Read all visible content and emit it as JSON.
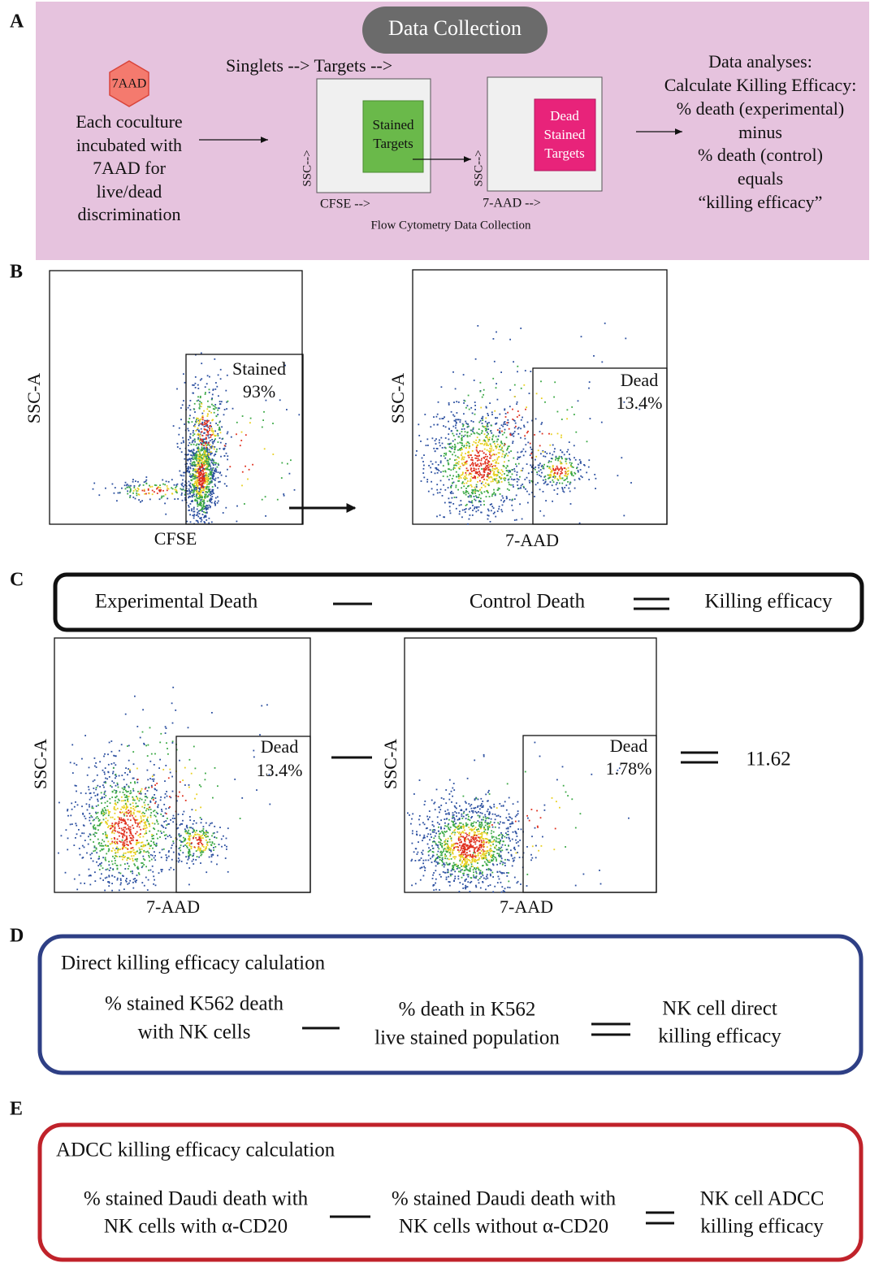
{
  "panels": {
    "A": {
      "label": "A",
      "badge": "Data Collection",
      "reagent": "7AAD",
      "incubation": [
        "Each coculture",
        "incubated with",
        "7AAD for",
        "live/dead",
        "discrimination"
      ],
      "gating_path": "Singlets --> Targets -->",
      "box1": {
        "gate": [
          "Stained",
          "Targets"
        ],
        "y_axis": "SSC-->",
        "x_axis": "CFSE -->"
      },
      "box2": {
        "gate": [
          "Dead",
          "Stained",
          "Targets"
        ],
        "y_axis": "SSC-->",
        "x_axis": "7-AAD -->"
      },
      "caption": "Flow Cytometry Data Collection",
      "analysis": [
        "Data analyses:",
        "Calculate Killing Efficacy:",
        "% death (experimental)",
        "minus",
        "% death (control)",
        "equals",
        "“killing efficacy”"
      ]
    },
    "B": {
      "label": "B",
      "plot1": {
        "y_axis": "SSC-A",
        "x_axis": "CFSE",
        "gate": "Stained",
        "percent": "93%"
      },
      "plot2": {
        "y_axis": "SSC-A",
        "x_axis": "7-AAD",
        "gate": "Dead",
        "percent": "13.4%"
      }
    },
    "C": {
      "label": "C",
      "equation": [
        "Experimental Death",
        "Control Death",
        "Killing efficacy"
      ],
      "plot1": {
        "y_axis": "SSC-A",
        "x_axis": "7-AAD",
        "gate": "Dead",
        "percent": "13.4%"
      },
      "plot2": {
        "y_axis": "SSC-A",
        "x_axis": "7-AAD",
        "gate": "Dead",
        "percent": "1.78%"
      },
      "result": "11.62"
    },
    "D": {
      "label": "D",
      "title": "Direct killing efficacy calulation",
      "left": [
        "% stained K562 death",
        "with NK cells"
      ],
      "middle": [
        "% death in K562",
        "live stained population"
      ],
      "right": [
        "NK cell direct",
        "killing efficacy"
      ]
    },
    "E": {
      "label": "E",
      "title": "ADCC killing efficacy calculation",
      "left": [
        "% stained Daudi death with",
        "NK cells with α-CD20"
      ],
      "middle": [
        "% stained Daudi death with",
        "NK cells without α-CD20"
      ],
      "right": [
        "NK cell ADCC",
        "killing efficacy"
      ]
    }
  }
}
